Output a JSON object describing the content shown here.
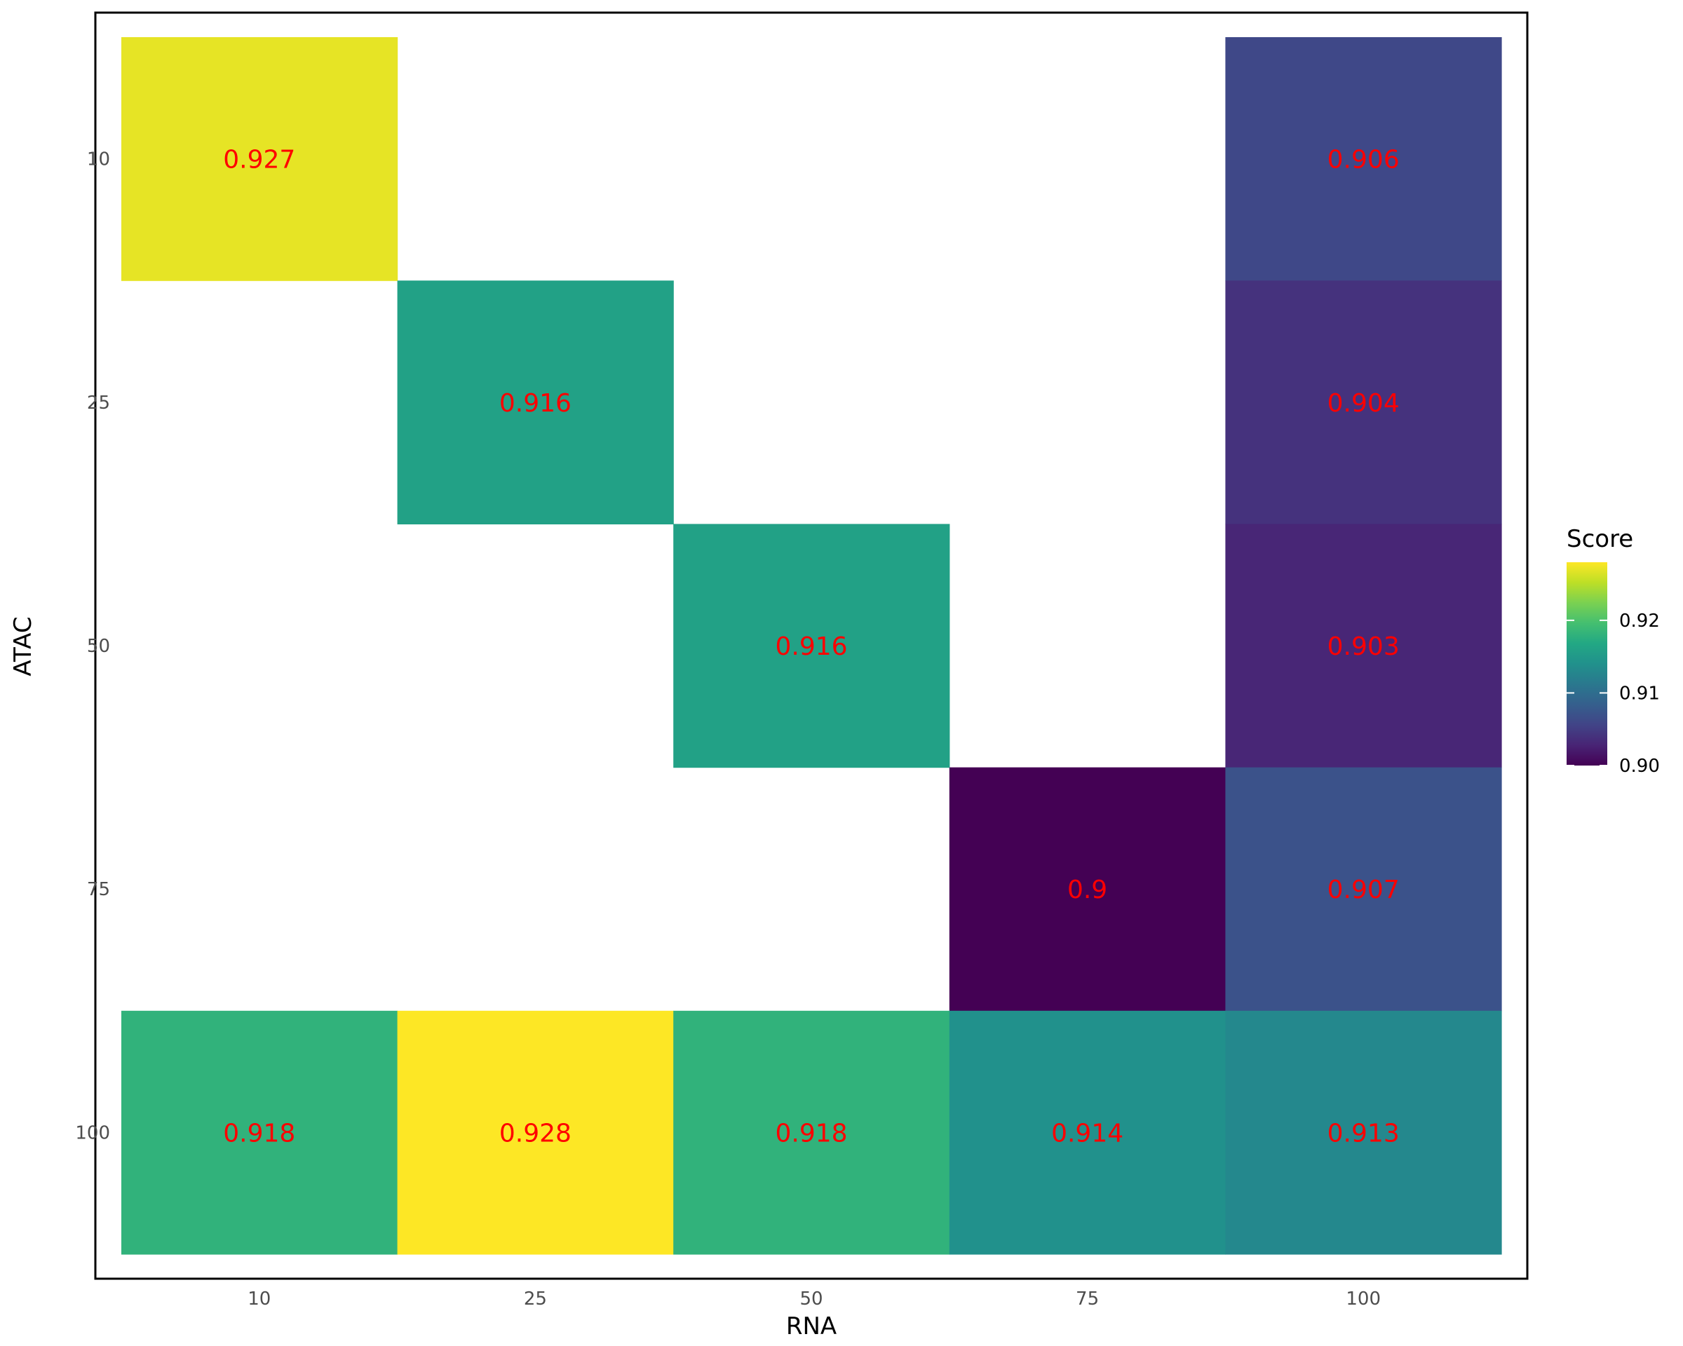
{
  "chart_data": {
    "type": "heatmap",
    "xlabel": "RNA",
    "ylabel": "ATAC",
    "x_categories": [
      "10",
      "25",
      "50",
      "75",
      "100"
    ],
    "y_categories": [
      "10",
      "25",
      "50",
      "75",
      "100"
    ],
    "cells": [
      {
        "x": "10",
        "y": "10",
        "value": 0.927,
        "label": "0.927"
      },
      {
        "x": "100",
        "y": "10",
        "value": 0.906,
        "label": "0.906"
      },
      {
        "x": "25",
        "y": "25",
        "value": 0.916,
        "label": "0.916"
      },
      {
        "x": "100",
        "y": "25",
        "value": 0.904,
        "label": "0.904"
      },
      {
        "x": "50",
        "y": "50",
        "value": 0.916,
        "label": "0.916"
      },
      {
        "x": "100",
        "y": "50",
        "value": 0.903,
        "label": "0.903"
      },
      {
        "x": "75",
        "y": "75",
        "value": 0.9,
        "label": "0.9"
      },
      {
        "x": "100",
        "y": "75",
        "value": 0.907,
        "label": "0.907"
      },
      {
        "x": "10",
        "y": "100",
        "value": 0.918,
        "label": "0.918"
      },
      {
        "x": "25",
        "y": "100",
        "value": 0.928,
        "label": "0.928"
      },
      {
        "x": "50",
        "y": "100",
        "value": 0.918,
        "label": "0.918"
      },
      {
        "x": "75",
        "y": "100",
        "value": 0.914,
        "label": "0.914"
      },
      {
        "x": "100",
        "y": "100",
        "value": 0.913,
        "label": "0.913"
      }
    ],
    "color_scale": {
      "name": "viridis",
      "min": 0.9,
      "max": 0.928,
      "legend_title": "Score",
      "legend_ticks": [
        {
          "value": 0.9,
          "label": "0.90"
        },
        {
          "value": 0.91,
          "label": "0.91"
        },
        {
          "value": 0.92,
          "label": "0.92"
        }
      ],
      "legend_position": "right"
    },
    "label_color": "#ff0000",
    "grid": false,
    "panel_border": true
  }
}
